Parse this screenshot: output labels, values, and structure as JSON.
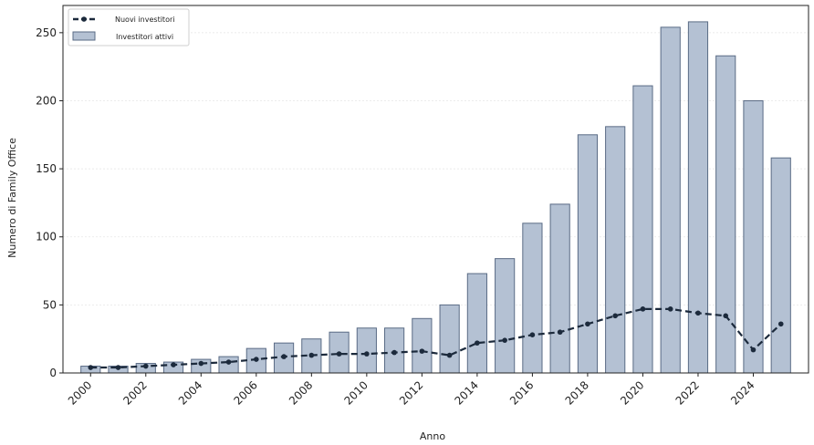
{
  "chart_data": {
    "type": "bar",
    "title": "",
    "xlabel": "Anno",
    "ylabel": "Numero di Family Office",
    "ylim": [
      0,
      270
    ],
    "yticks": [
      0,
      50,
      100,
      150,
      200,
      250
    ],
    "xtick_labels": [
      "2000",
      "2002",
      "2004",
      "2006",
      "2008",
      "2010",
      "2012",
      "2014",
      "2016",
      "2018",
      "2020",
      "2022",
      "2024"
    ],
    "grid": "horizontal",
    "legend_position": "top-left",
    "categories": [
      2000,
      2001,
      2002,
      2003,
      2004,
      2005,
      2006,
      2007,
      2008,
      2009,
      2010,
      2011,
      2012,
      2013,
      2014,
      2015,
      2016,
      2017,
      2018,
      2019,
      2020,
      2021,
      2022,
      2023,
      2024,
      2025
    ],
    "series": [
      {
        "name": "Investitori attivi",
        "type": "bar",
        "color": "#b4c1d3",
        "edge_color": "#5a6b85",
        "values": [
          5,
          5,
          7,
          8,
          10,
          12,
          18,
          22,
          25,
          30,
          33,
          33,
          40,
          50,
          73,
          84,
          110,
          124,
          175,
          181,
          211,
          254,
          258,
          233,
          200,
          158
        ]
      },
      {
        "name": "Nuovi investitori",
        "type": "line",
        "style": "dashed",
        "marker": "circle",
        "color": "#1c2a3c",
        "values": [
          4,
          4,
          5,
          6,
          7,
          8,
          10,
          12,
          13,
          14,
          14,
          15,
          16,
          13,
          22,
          24,
          28,
          30,
          36,
          42,
          47,
          47,
          44,
          42,
          17,
          36
        ]
      }
    ]
  }
}
